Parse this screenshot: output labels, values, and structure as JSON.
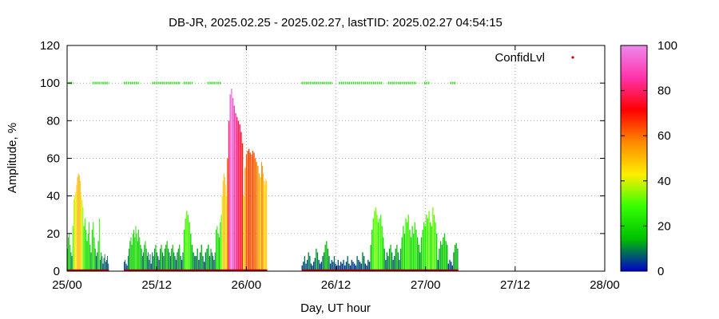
{
  "chart_data": {
    "type": "bar",
    "title": "DB-JR, 2025.02.25 - 2025.02.27, lastTID: 2025.02.27 04:54:15",
    "xlabel": "Day, UT hour",
    "ylabel": "Amplitude, %",
    "x_unit": "hours since 25/00",
    "xlim": [
      0,
      72
    ],
    "ylim": [
      0,
      120
    ],
    "x_ticks": [
      0,
      12,
      24,
      36,
      48,
      60,
      72
    ],
    "x_tick_labels": [
      "25/00",
      "25/12",
      "26/00",
      "26/12",
      "27/00",
      "27/12",
      "28/00"
    ],
    "y_ticks": [
      0,
      20,
      40,
      60,
      80,
      100,
      120
    ],
    "grid": true,
    "legend": {
      "label": "ConfidLvl",
      "placement": "top-right",
      "marker_color": "#cc0000"
    },
    "colorbar": {
      "min": 0,
      "max": 100,
      "ticks": [
        0,
        20,
        40,
        60,
        80,
        100
      ],
      "stops": [
        "#0000cc",
        "#00c000",
        "#33ff00",
        "#ffee00",
        "#ff8800",
        "#ff0000",
        "#ff33aa",
        "#ee88ee"
      ]
    },
    "confid_level": {
      "value": 100,
      "ranges": [
        [
          0.2,
          0.8
        ],
        [
          3.4,
          5.6
        ],
        [
          7.6,
          9.6
        ],
        [
          11.4,
          15.2
        ],
        [
          15.6,
          16.8
        ],
        [
          18.8,
          20.6
        ]
      ],
      "ranges_b": [
        [
          31.4,
          35.5
        ],
        [
          36.4,
          42.3
        ],
        [
          43.0,
          46.8
        ],
        [
          47.8,
          48.5
        ],
        [
          51.3,
          52.0
        ]
      ]
    },
    "amplitude_segments": [
      {
        "start": 0.0,
        "end": 0.6,
        "values": [
          12,
          18,
          20,
          14,
          10
        ]
      },
      {
        "start": 0.6,
        "end": 2.2,
        "values": [
          8,
          24,
          38,
          40,
          42,
          46,
          50,
          52,
          51,
          48,
          42,
          38,
          34
        ]
      },
      {
        "start": 2.2,
        "end": 4.4,
        "values": [
          24,
          28,
          22,
          16,
          20,
          26,
          14,
          10,
          22,
          26,
          18,
          12,
          8,
          10,
          16,
          28
        ]
      },
      {
        "start": 4.4,
        "end": 5.6,
        "values": [
          6,
          10,
          8,
          4,
          7,
          9,
          5,
          6,
          8,
          4
        ]
      },
      {
        "start": 7.6,
        "end": 11.2,
        "values": [
          5,
          6,
          4,
          3,
          8,
          12,
          16,
          18,
          14,
          20,
          22,
          18,
          24,
          20,
          16,
          22,
          18,
          14,
          12,
          8,
          10,
          14,
          16,
          12,
          8,
          10,
          6,
          9
        ]
      },
      {
        "start": 11.2,
        "end": 15.6,
        "values": [
          4,
          10,
          8,
          12,
          14,
          10,
          8,
          6,
          12,
          14,
          10,
          8,
          12,
          14,
          16,
          12,
          10,
          8,
          12,
          14,
          10,
          8,
          6,
          10,
          12,
          14,
          8,
          6,
          10
        ]
      },
      {
        "start": 15.6,
        "end": 17.2,
        "values": [
          22,
          28,
          32,
          30,
          26,
          20,
          14,
          10,
          8
        ]
      },
      {
        "start": 17.2,
        "end": 19.2,
        "values": [
          8,
          12,
          6,
          10,
          14,
          8,
          5,
          10,
          12,
          14,
          8
        ]
      },
      {
        "start": 19.2,
        "end": 20.6,
        "values": [
          12,
          10,
          8,
          6,
          10,
          22,
          24,
          20,
          18,
          26
        ]
      },
      {
        "start": 20.6,
        "end": 21.4,
        "values": [
          30,
          40,
          48,
          52,
          50,
          46,
          40
        ]
      },
      {
        "start": 21.4,
        "end": 23.6,
        "values": [
          60,
          80,
          94,
          97,
          92,
          88,
          84,
          82,
          80,
          78,
          74,
          68
        ]
      },
      {
        "start": 23.6,
        "end": 26.0,
        "values": [
          40,
          55,
          62,
          64,
          65,
          63,
          62,
          64,
          63,
          60,
          58,
          56,
          52,
          50
        ]
      },
      {
        "start": 26.0,
        "end": 26.8,
        "values": [
          58,
          56,
          52,
          48,
          46,
          49,
          48
        ]
      },
      {
        "start": 31.4,
        "end": 36.4,
        "values": [
          3,
          5,
          8,
          4,
          6,
          10,
          8,
          4,
          3,
          5,
          7,
          12,
          10,
          6,
          4,
          5,
          8,
          10,
          14,
          16,
          12,
          8,
          4,
          6,
          5,
          8,
          4,
          3,
          6
        ]
      },
      {
        "start": 36.4,
        "end": 40.6,
        "values": [
          3,
          5,
          4,
          6,
          3,
          5,
          8,
          4,
          3,
          6,
          5,
          4,
          3,
          8,
          6,
          5,
          4,
          10,
          8,
          4,
          3,
          6,
          5
        ]
      },
      {
        "start": 40.6,
        "end": 42.6,
        "values": [
          14,
          22,
          28,
          32,
          34,
          30,
          26,
          28,
          30,
          24,
          18,
          12
        ]
      },
      {
        "start": 42.6,
        "end": 44.6,
        "values": [
          6,
          10,
          8,
          12,
          14,
          10,
          6,
          8,
          12,
          14,
          10,
          6
        ]
      },
      {
        "start": 44.6,
        "end": 47.2,
        "values": [
          12,
          18,
          24,
          20,
          28,
          26,
          30,
          22,
          18,
          24,
          20,
          26,
          22,
          18,
          14
        ]
      },
      {
        "start": 47.2,
        "end": 49.6,
        "values": [
          10,
          18,
          22,
          26,
          24,
          30,
          28,
          32,
          26,
          24,
          34,
          30,
          26,
          20
        ]
      },
      {
        "start": 49.6,
        "end": 51.0,
        "values": [
          6,
          12,
          16,
          14,
          18,
          20,
          16,
          14
        ]
      },
      {
        "start": 51.0,
        "end": 52.4,
        "values": [
          4,
          6,
          5,
          3,
          10,
          14,
          15,
          12
        ]
      }
    ]
  }
}
